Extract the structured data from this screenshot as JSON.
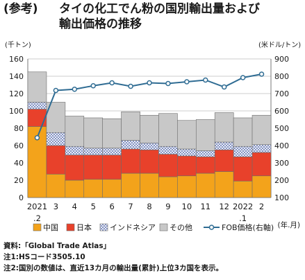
{
  "title": {
    "prefix": "(参考)",
    "line1": "タイの化工でん粉の国別輸出量および",
    "line2": "輸出価格の推移"
  },
  "units": {
    "left": "(千トン)",
    "right": "(米ドル/トン)",
    "x": "(年.月)"
  },
  "notes": [
    "資料:「Global Trade Atlas」",
    "注1:HSコード3505.10",
    "注2:国別の数値は、直近13カ月の輸出量(累計)上位3カ国を表示。"
  ],
  "colors": {
    "china": "#f3a31b",
    "japan": "#e8412b",
    "indonesia_bg": "#ffffff",
    "indonesia_pattern": "#5b6fb0",
    "other": "#c8c8c8",
    "fob_line": "#2f6c93",
    "fob_marker_fill": "#ffffff"
  },
  "chart_data": {
    "type": "bar",
    "stacked": true,
    "categories": [
      "2021\n.2",
      "3",
      "4",
      "5",
      "6",
      "7",
      "8",
      "9",
      "10",
      "11",
      "12",
      "2022\n.1",
      "2"
    ],
    "series": [
      {
        "name": "中国",
        "values": [
          82,
          27,
          20,
          21,
          21,
          28,
          28,
          24,
          25,
          28,
          30,
          19,
          25
        ]
      },
      {
        "name": "日本",
        "values": [
          20,
          33,
          29,
          28,
          28,
          28,
          27,
          26,
          23,
          19,
          25,
          28,
          27
        ]
      },
      {
        "name": "インドネシア",
        "values": [
          8,
          15,
          10,
          8,
          8,
          10,
          8,
          9,
          8,
          7,
          9,
          12,
          9
        ]
      },
      {
        "name": "その他",
        "values": [
          35,
          35,
          35,
          35,
          34,
          33,
          32,
          38,
          33,
          36,
          34,
          33,
          34
        ]
      }
    ],
    "line_series": {
      "name": "FOB価格(右軸)",
      "axis": "right",
      "values": [
        445,
        718,
        725,
        745,
        762,
        742,
        762,
        758,
        768,
        778,
        738,
        792,
        812
      ]
    },
    "ylim_left": [
      0,
      160
    ],
    "yticks_left": [
      0,
      20,
      40,
      60,
      80,
      100,
      120,
      140,
      160
    ],
    "ylim_right": [
      100,
      900
    ],
    "yticks_right": [
      100,
      200,
      300,
      400,
      500,
      600,
      700,
      800,
      900
    ],
    "grid": true,
    "legend_position": "bottom"
  }
}
